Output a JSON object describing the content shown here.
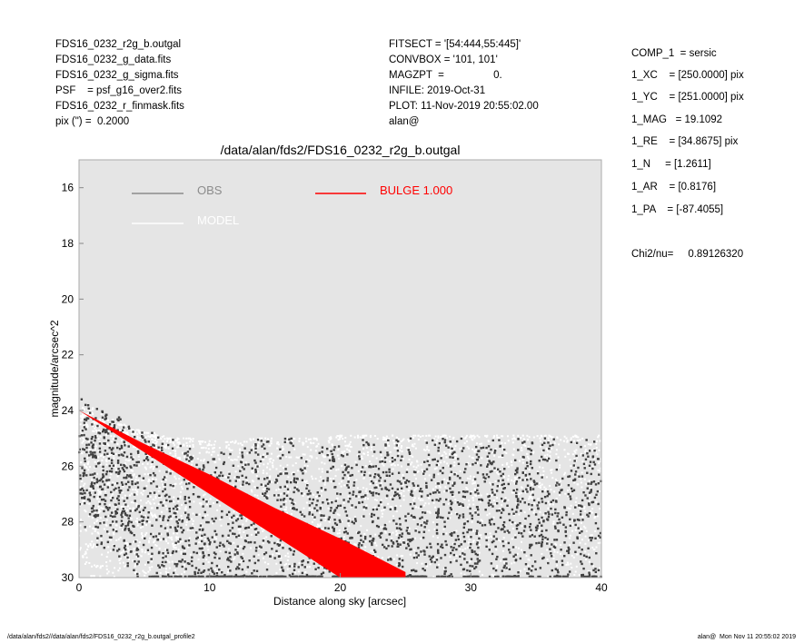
{
  "header_left": [
    "FDS16_0232_r2g_b.outgal",
    "FDS16_0232_g_data.fits",
    "FDS16_0232_g_sigma.fits",
    "PSF    = psf_g16_over2.fits",
    "FDS16_0232_r_finmask.fits",
    "pix (\") =  0.2000"
  ],
  "header_mid": [
    "FITSECT = '[54:444,55:445]'",
    "CONVBOX = '101, 101'",
    "MAGZPT  =                 0.",
    "INFILE: 2019-Oct-31",
    "PLOT: 11-Nov-2019 20:55:02.00",
    "alan@"
  ],
  "params": [
    "COMP_1  = sersic",
    "1_XC    = [250.0000] pix",
    "1_YC    = [251.0000] pix",
    "1_MAG   = 19.1092",
    "1_RE    = [34.8675] pix",
    "1_N     = [1.2611]",
    "1_AR    = [0.8176]",
    "1_PA    = [-87.4055]"
  ],
  "chi2": "Chi2/nu=     0.89126320",
  "footer_left": "/data/alan/fds2//data/alan/fds2/FDS16_0232_r2g_b.outgal_profile2",
  "footer_right": "alan@  Mon Nov 11 20:55:02 2019",
  "chart_data": {
    "type": "scatter",
    "title": "/data/alan/fds2/FDS16_0232_r2g_b.outgal",
    "xlabel": "Distance along sky [arcsec]",
    "ylabel": "magnitude/arcsec^2",
    "xlim": [
      0,
      40
    ],
    "ylim": [
      30,
      15
    ],
    "y_inverted": true,
    "xticks": [
      "0",
      "10",
      "20",
      "30",
      "40"
    ],
    "yticks": [
      "16",
      "18",
      "20",
      "22",
      "24",
      "26",
      "28",
      "30"
    ],
    "background": "#e5e5e5",
    "legend": [
      {
        "label": "OBS",
        "color": "#8c8c8c"
      },
      {
        "label": "MODEL",
        "color": "#ffffff"
      },
      {
        "label": "BULGE  1.000",
        "color": "#ff0000"
      }
    ],
    "series": [
      {
        "name": "OBS",
        "color": "#404040",
        "points": [
          [
            0.2,
            23.6
          ],
          [
            0.5,
            23.8
          ],
          [
            1,
            24.5
          ],
          [
            1.5,
            24.8
          ],
          [
            2,
            25.2
          ],
          [
            2.5,
            25.4
          ],
          [
            3,
            25.8
          ],
          [
            3.5,
            26
          ],
          [
            4,
            26.4
          ],
          [
            5,
            26.8
          ],
          [
            6,
            27.5
          ],
          [
            7,
            27.8
          ],
          [
            8,
            28.3
          ],
          [
            9,
            28.6
          ],
          [
            10,
            28.8
          ],
          [
            11,
            28.5
          ],
          [
            12,
            29
          ],
          [
            13,
            28.2
          ],
          [
            14,
            27.5
          ],
          [
            15,
            29.3
          ],
          [
            16,
            27.8
          ],
          [
            17,
            28.6
          ],
          [
            18,
            29.5
          ],
          [
            19,
            27.2
          ],
          [
            20,
            28
          ],
          [
            21,
            29
          ],
          [
            22,
            27.5
          ],
          [
            23,
            28.5
          ],
          [
            24,
            26.8
          ],
          [
            25,
            27.8
          ],
          [
            26,
            29.2
          ],
          [
            27,
            26.5
          ],
          [
            28,
            28
          ],
          [
            29,
            27.3
          ],
          [
            30,
            28.8
          ],
          [
            31,
            26.4
          ],
          [
            32,
            27.6
          ],
          [
            33,
            29.1
          ],
          [
            34,
            26.9
          ],
          [
            35,
            28.2
          ],
          [
            36,
            27
          ],
          [
            37,
            29.4
          ],
          [
            38,
            26.3
          ],
          [
            39,
            27.8
          ],
          [
            39.8,
            28.5
          ]
        ]
      },
      {
        "name": "MODEL",
        "color": "#ffffff",
        "points": [
          [
            0.3,
            23.9
          ],
          [
            1,
            24.1
          ],
          [
            2,
            24.3
          ],
          [
            3,
            24.5
          ],
          [
            4,
            24.7
          ],
          [
            5,
            24.8
          ],
          [
            6,
            24.9
          ],
          [
            7,
            25
          ],
          [
            8,
            25
          ],
          [
            10,
            25.1
          ],
          [
            12,
            25.1
          ],
          [
            14,
            25
          ],
          [
            16,
            25
          ],
          [
            18,
            25
          ],
          [
            20,
            24.9
          ],
          [
            22,
            24.9
          ],
          [
            24,
            24.9
          ],
          [
            26,
            24.9
          ],
          [
            28,
            24.9
          ],
          [
            30,
            24.9
          ],
          [
            32,
            24.9
          ],
          [
            34,
            24.9
          ],
          [
            36,
            24.9
          ],
          [
            38,
            24.9
          ],
          [
            39.8,
            24.9
          ]
        ]
      },
      {
        "name": "BULGE  1.000",
        "color": "#ff0000",
        "band": {
          "x": [
            0,
            5,
            10,
            15,
            20,
            25
          ],
          "bright_edge": [
            24.0,
            25.2,
            26.3,
            27.5,
            28.6,
            29.8
          ],
          "faint_edge": [
            24.0,
            25.5,
            27.0,
            28.5,
            30.0,
            31.5
          ]
        }
      }
    ]
  }
}
